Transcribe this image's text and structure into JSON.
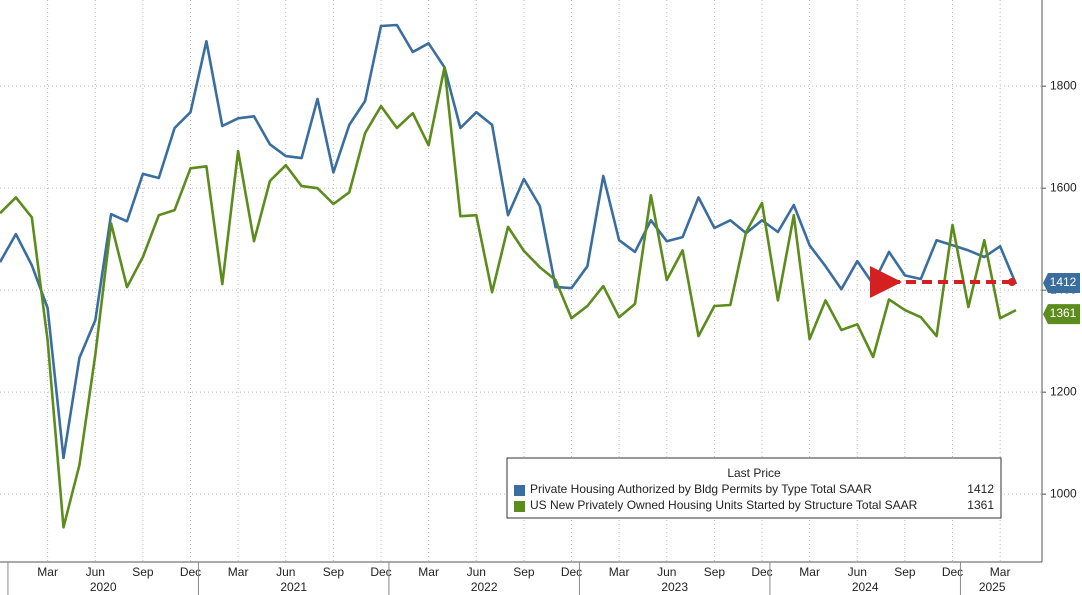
{
  "chart_data": {
    "type": "line",
    "categories": [
      null,
      null,
      null,
      "Mar",
      null,
      null,
      "Jun",
      null,
      null,
      "Sep",
      null,
      null,
      "Dec",
      null,
      null,
      "Mar",
      null,
      null,
      "Jun",
      null,
      null,
      "Sep",
      null,
      null,
      "Dec",
      null,
      null,
      "Mar",
      null,
      null,
      "Jun",
      null,
      null,
      "Sep",
      null,
      null,
      "Dec",
      null,
      null,
      "Mar",
      null,
      null,
      "Jun",
      null,
      null,
      "Sep",
      null,
      null,
      "Dec",
      null,
      null,
      "Mar",
      null,
      null,
      "Jun",
      null,
      null,
      "Sep",
      null,
      null,
      "Dec",
      null,
      null,
      "Mar",
      null
    ],
    "years": [
      "2020",
      "2021",
      "2022",
      "2023",
      "2024",
      "2025"
    ],
    "legend_title": "Last Price",
    "series": [
      {
        "name": "Private Housing Authorized by Bldg Permits by Type Total SAAR",
        "color": "#3a6e9f",
        "values": [
          1455,
          1510,
          1449,
          1365,
          1071,
          1267,
          1341,
          1549,
          1535,
          1628,
          1620,
          1718,
          1749,
          1888,
          1722,
          1737,
          1741,
          1686,
          1663,
          1659,
          1775,
          1631,
          1724,
          1771,
          1918,
          1920,
          1867,
          1884,
          1837,
          1718,
          1749,
          1724,
          1547,
          1618,
          1565,
          1406,
          1404,
          1447,
          1624,
          1498,
          1475,
          1537,
          1496,
          1504,
          1582,
          1522,
          1537,
          1512,
          1537,
          1514,
          1567,
          1488,
          1447,
          1402,
          1457,
          1412,
          1475,
          1429,
          1422,
          1498,
          1488,
          1478,
          1465,
          1486,
          1412
        ]
      },
      {
        "name": "US New Privately Owned Housing Units Started by Structure Total SAAR",
        "color": "#5b8c1c",
        "values": [
          1551,
          1582,
          1543,
          1302,
          935,
          1057,
          1273,
          1531,
          1406,
          1465,
          1547,
          1557,
          1639,
          1643,
          1412,
          1673,
          1496,
          1614,
          1645,
          1604,
          1600,
          1569,
          1592,
          1708,
          1761,
          1718,
          1747,
          1684,
          1837,
          1545,
          1547,
          1396,
          1524,
          1477,
          1445,
          1420,
          1345,
          1369,
          1408,
          1347,
          1373,
          1586,
          1420,
          1478,
          1310,
          1369,
          1371,
          1514,
          1571,
          1380,
          1547,
          1304,
          1380,
          1322,
          1333,
          1269,
          1382,
          1361,
          1347,
          1310,
          1528,
          1367,
          1498,
          1345,
          1361
        ]
      }
    ],
    "ylim": [
      867,
      1969
    ],
    "yticks": [
      1000,
      1200,
      1400,
      1600,
      1800
    ],
    "grid": true,
    "legend": "lower right"
  }
}
